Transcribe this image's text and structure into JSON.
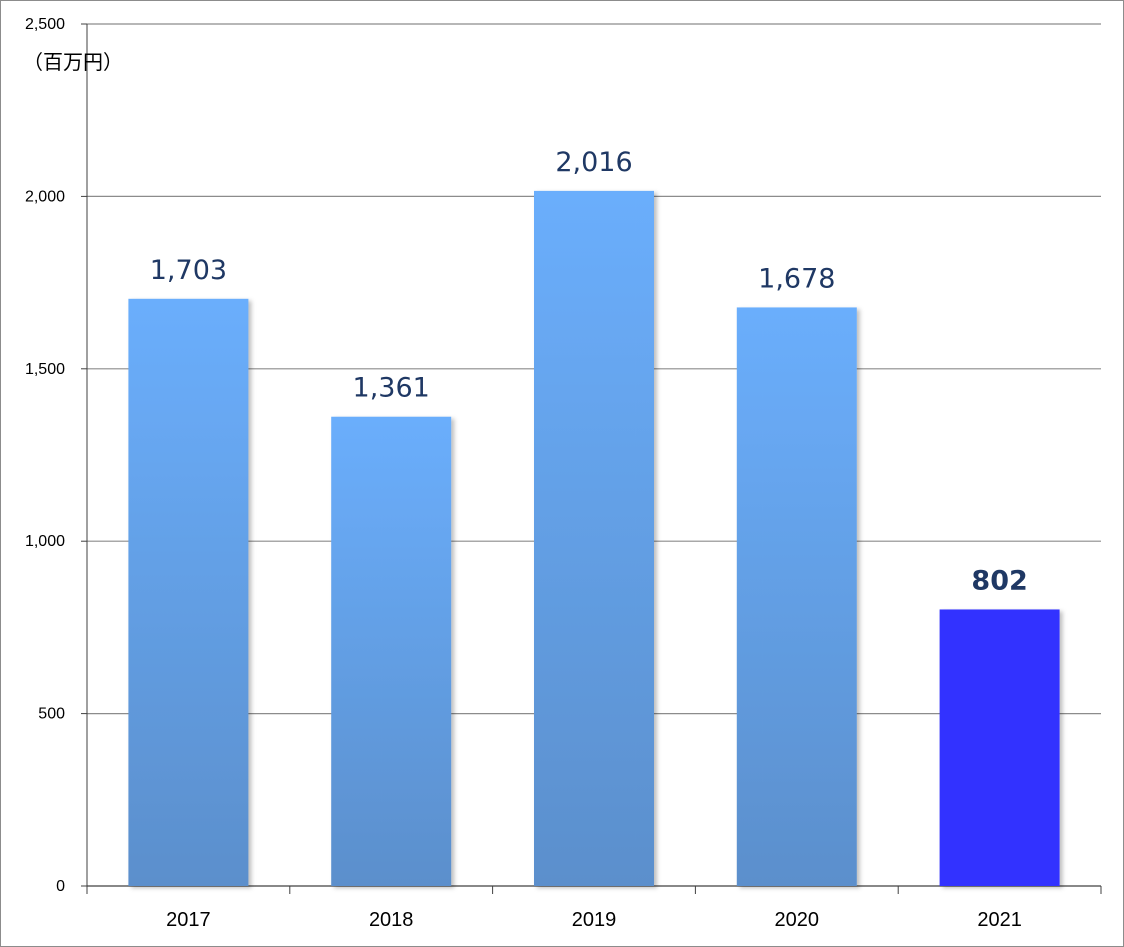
{
  "chart_data": {
    "type": "bar",
    "title": "",
    "xlabel": "",
    "ylabel": "",
    "unit_label": "（百万円）",
    "categories": [
      "2017",
      "2018",
      "2019",
      "2020",
      "2021"
    ],
    "series": [
      {
        "values": [
          1703,
          1361,
          2016,
          1678,
          802
        ],
        "value_labels": [
          "1,703",
          "1,361",
          "2,016",
          "1,678",
          "802"
        ]
      }
    ],
    "ylim": [
      0,
      2500
    ],
    "yticks": [
      0,
      500,
      1000,
      1500,
      2000,
      2500
    ],
    "ytick_labels": [
      "0",
      "500",
      "1,000",
      "1,500",
      "2,000",
      "2,500"
    ],
    "grid": true,
    "legend": "none",
    "highlight_index": 4,
    "colors": {
      "bar_top": "#6aaefc",
      "bar_bottom": "#5b8fcc",
      "highlight": "#3333ff",
      "gridline": "#8c8c8c",
      "value_label": "#1f3864"
    }
  }
}
